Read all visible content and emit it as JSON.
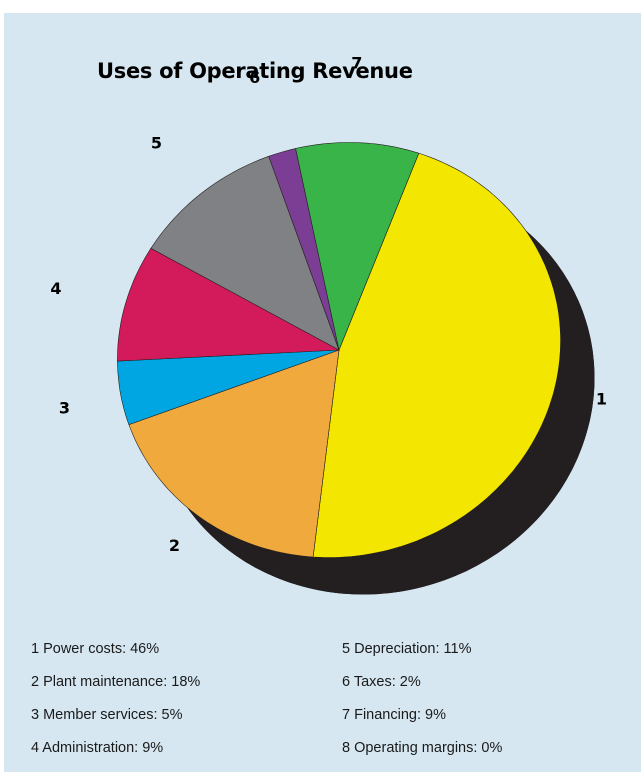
{
  "chart_data": {
    "type": "pie",
    "title": "Uses of Operating Revenue",
    "slices": [
      {
        "label": "1",
        "legend": "1 Power costs:  46%",
        "value": 46,
        "color": "#f3e600"
      },
      {
        "label": "2",
        "legend": "2 Plant maintenance:  18%",
        "value": 18,
        "color": "#f0a93c"
      },
      {
        "label": "3",
        "legend": "3 Member services:  5%",
        "value": 5,
        "color": "#00a6e2"
      },
      {
        "label": "4",
        "legend": "4 Administration:  9%",
        "value": 9,
        "color": "#d31a5a"
      },
      {
        "label": "5",
        "legend": "5 Depreciation:  11%",
        "value": 11,
        "color": "#808184"
      },
      {
        "label": "6",
        "legend": "6 Taxes:  2%",
        "value": 2,
        "color": "#7b3e94"
      },
      {
        "label": "7",
        "legend": "7 Financing:  9%",
        "value": 9,
        "color": "#38b449"
      },
      {
        "label": "8",
        "legend": "8 Operating margins:  0%",
        "value": 0,
        "color": null
      }
    ],
    "depth_color": "#231f20",
    "background": "#d6e7f1",
    "legend_placement": "bottom"
  }
}
